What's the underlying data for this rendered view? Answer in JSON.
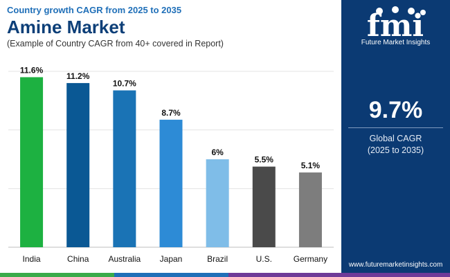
{
  "header": {
    "kicker": "Country growth CAGR from 2025 to 2035",
    "title": "Amine Market",
    "subtitle": "(Example of Country CAGR from 40+ covered in Report)"
  },
  "sidebar": {
    "logo_name": "fmi",
    "logo_tagline": "Future Market Insights",
    "global_cagr_value": "9.7%",
    "global_cagr_label": "Global CAGR",
    "global_cagr_period": "(2025 to 2035)",
    "url": "www.futuremarketinsights.com"
  },
  "colors": {
    "sidebar_bg": "#0b3a73",
    "footer": [
      "#3aab4a",
      "#1f6fb8",
      "#6f3a98"
    ]
  },
  "chart_data": {
    "type": "bar",
    "categories": [
      "India",
      "China",
      "Australia",
      "Japan",
      "Brazil",
      "U.S.",
      "Germany"
    ],
    "values": [
      11.6,
      11.2,
      10.7,
      8.7,
      6.0,
      5.5,
      5.1
    ],
    "data_labels": [
      "11.6%",
      "11.2%",
      "10.7%",
      "8.7%",
      "6%",
      "5.5%",
      "5.1%"
    ],
    "bar_colors": [
      "#1db141",
      "#0a5894",
      "#1a73b5",
      "#2d8bd6",
      "#7fbde8",
      "#4a4a4a",
      "#7d7d7d"
    ],
    "ylim": [
      0,
      12
    ],
    "title": "Amine Market",
    "xlabel": "",
    "ylabel": "",
    "grid": true
  }
}
